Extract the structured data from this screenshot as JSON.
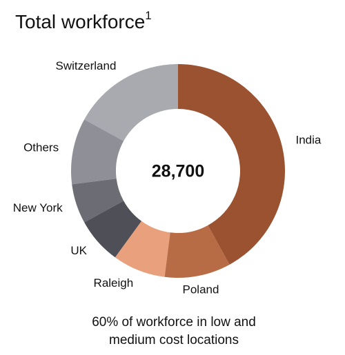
{
  "chart_data": {
    "type": "donut",
    "title": "Total workforce",
    "title_superscript": "1",
    "center_label": "28,700",
    "categories": [
      "India",
      "Poland",
      "Raleigh",
      "UK",
      "New York",
      "Others",
      "Switzerland"
    ],
    "values": [
      42,
      10,
      8,
      7,
      6,
      10,
      17
    ],
    "colors": [
      "#9a5230",
      "#b86c46",
      "#e9a07c",
      "#4f4f57",
      "#6c6c74",
      "#8f8f97",
      "#a9aaaf"
    ],
    "footnote": [
      "60% of workforce in low and",
      "medium cost locations"
    ]
  }
}
